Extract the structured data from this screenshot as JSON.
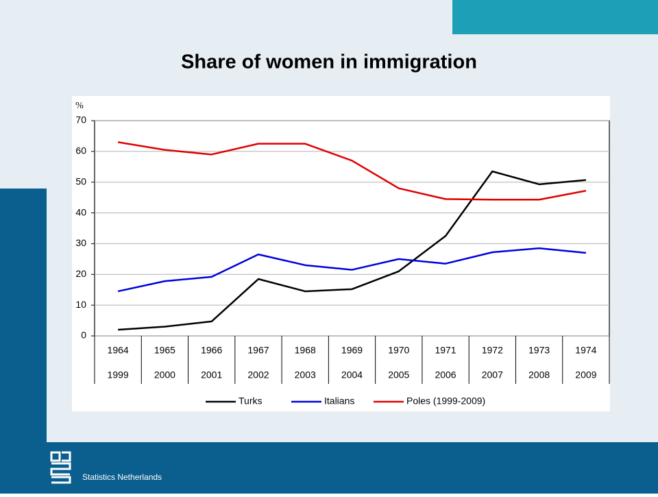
{
  "chart_data": {
    "type": "line",
    "title": "Share of women in immigration",
    "y_label": "%",
    "categories": [
      "1964",
      "1965",
      "1966",
      "1967",
      "1968",
      "1969",
      "1970",
      "1971",
      "1972",
      "1973",
      "1974"
    ],
    "categories_2": [
      "1999",
      "2000",
      "2001",
      "2002",
      "2003",
      "2004",
      "2005",
      "2006",
      "2007",
      "2008",
      "2009"
    ],
    "series": [
      {
        "name": "Turks",
        "color": "#000000",
        "values": [
          2,
          3,
          4.7,
          18.5,
          14.5,
          15.2,
          21,
          32.5,
          53.5,
          49.3,
          50.7
        ]
      },
      {
        "name": "Italians",
        "color": "#0000dd",
        "values": [
          14.5,
          17.8,
          19.2,
          26.5,
          23,
          21.5,
          25,
          23.5,
          27.2,
          28.5,
          27
        ]
      },
      {
        "name": "Poles (1999-2009)",
        "color": "#e00000",
        "values": [
          63,
          60.5,
          59,
          62.5,
          62.5,
          57,
          48,
          44.5,
          44.3,
          44.3,
          47.2
        ]
      }
    ],
    "ylim": [
      0,
      70
    ],
    "yticks": [
      0,
      10,
      20,
      30,
      40,
      50,
      60,
      70
    ],
    "grid": true
  },
  "footer": "Statistics Netherlands"
}
